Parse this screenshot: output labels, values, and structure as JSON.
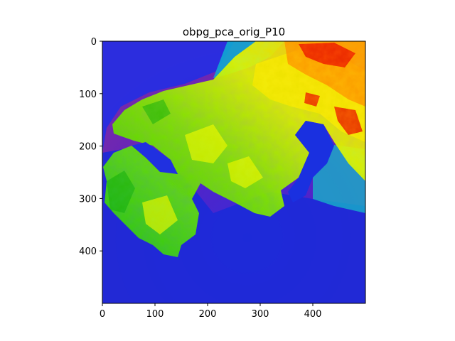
{
  "chart_data": {
    "type": "heatmap",
    "title": "obpg_pca_orig_P10",
    "xlabel": "",
    "ylabel": "",
    "image_shape": [
      500,
      500
    ],
    "xlim": [
      0,
      500
    ],
    "ylim": [
      500,
      0
    ],
    "x_ticks": [
      0,
      100,
      200,
      300,
      400
    ],
    "y_ticks": [
      0,
      100,
      200,
      300,
      400
    ],
    "colormap": "prism-like spectral (purple → blue → cyan → green → yellow → orange → red)",
    "colormap_stops": [
      "#6a1fb0",
      "#1f1fe6",
      "#0aa0c8",
      "#10c010",
      "#a8f000",
      "#f0e000",
      "#ff8a00",
      "#e00000"
    ],
    "grid": false,
    "legend": "none",
    "description_regions": {
      "sea": "purple/blue",
      "coastal_water": "cyan",
      "land_low": "green",
      "land_mid": "yellow-green",
      "land_high": "orange/red"
    }
  }
}
